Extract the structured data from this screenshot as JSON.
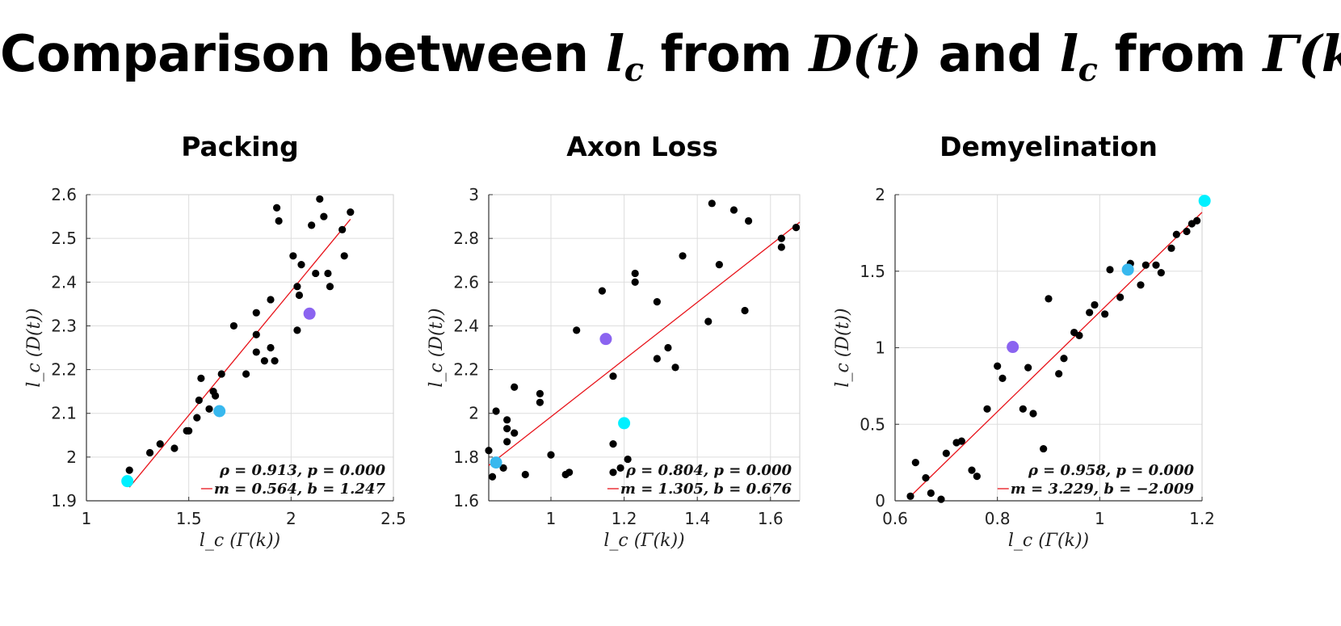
{
  "title": {
    "prefix": "Comparison between ",
    "var1": "l",
    "var1_sub": "c",
    "mid1": " from ",
    "expr1": "D(t)",
    "mid2": " and ",
    "var2": "l",
    "var2_sub": "c",
    "mid3": " from ",
    "expr2": "Γ(k)"
  },
  "colors": {
    "points": "#000000",
    "fit_line": "#e8141b",
    "highlight_cyan": "#00f0ff",
    "highlight_blue": "#38b8ee",
    "highlight_purple": "#8b64f0",
    "grid": "#dddddd"
  },
  "chart_data": [
    {
      "type": "scatter",
      "title": "Packing",
      "xlabel": "l_c (Γ(k))",
      "ylabel": "l_c (D(t))",
      "xlim": [
        1,
        2.5
      ],
      "ylim": [
        1.9,
        2.6
      ],
      "xticks": [
        1,
        1.5,
        2,
        2.5
      ],
      "xtick_labels": [
        "1",
        "1.5",
        "2",
        "2.5"
      ],
      "yticks": [
        1.9,
        2.0,
        2.1,
        2.2,
        2.3,
        2.4,
        2.5,
        2.6
      ],
      "ytick_labels": [
        "1.9",
        "2",
        "2.1",
        "2.2",
        "2.3",
        "2.4",
        "2.5",
        "2.6"
      ],
      "grid": true,
      "points": [
        [
          1.21,
          1.97
        ],
        [
          1.31,
          2.01
        ],
        [
          1.36,
          2.03
        ],
        [
          1.43,
          2.02
        ],
        [
          1.49,
          2.06
        ],
        [
          1.5,
          2.06
        ],
        [
          1.54,
          2.09
        ],
        [
          1.55,
          2.13
        ],
        [
          1.56,
          2.18
        ],
        [
          1.6,
          2.11
        ],
        [
          1.62,
          2.15
        ],
        [
          1.63,
          2.14
        ],
        [
          1.66,
          2.19
        ],
        [
          1.72,
          2.3
        ],
        [
          1.78,
          2.19
        ],
        [
          1.83,
          2.24
        ],
        [
          1.83,
          2.28
        ],
        [
          1.83,
          2.33
        ],
        [
          1.87,
          2.22
        ],
        [
          1.9,
          2.25
        ],
        [
          1.9,
          2.36
        ],
        [
          1.92,
          2.22
        ],
        [
          1.93,
          2.57
        ],
        [
          1.94,
          2.54
        ],
        [
          2.01,
          2.46
        ],
        [
          2.03,
          2.39
        ],
        [
          2.03,
          2.29
        ],
        [
          2.04,
          2.37
        ],
        [
          2.05,
          2.44
        ],
        [
          2.1,
          2.53
        ],
        [
          2.12,
          2.42
        ],
        [
          2.14,
          2.59
        ],
        [
          2.16,
          2.55
        ],
        [
          2.18,
          2.42
        ],
        [
          2.19,
          2.39
        ],
        [
          2.25,
          2.52
        ],
        [
          2.26,
          2.46
        ],
        [
          2.29,
          2.56
        ]
      ],
      "highlights": [
        {
          "x": 1.2,
          "y": 1.945,
          "color": "#00f0ff"
        },
        {
          "x": 1.65,
          "y": 2.105,
          "color": "#38b8ee"
        },
        {
          "x": 2.09,
          "y": 2.328,
          "color": "#8b64f0"
        }
      ],
      "fit": {
        "x_range": [
          1.21,
          2.29
        ]
      },
      "stats_text": "ρ = 0.913, p = 0.000",
      "fit_text": "m = 0.564, b = 1.247"
    },
    {
      "type": "scatter",
      "title": "Axon Loss",
      "xlabel": "l_c (Γ(k))",
      "ylabel": "l_c (D(t))",
      "xlim": [
        0.83,
        1.68
      ],
      "ylim": [
        1.6,
        3.0
      ],
      "xticks": [
        1,
        1.2,
        1.4,
        1.6
      ],
      "xtick_labels": [
        "1",
        "1.2",
        "1.4",
        "1.6"
      ],
      "yticks": [
        1.6,
        1.8,
        2.0,
        2.2,
        2.4,
        2.6,
        2.8,
        3.0
      ],
      "ytick_labels": [
        "1.6",
        "1.8",
        "2",
        "2.2",
        "2.4",
        "2.6",
        "2.8",
        "3"
      ],
      "grid": true,
      "points": [
        [
          0.83,
          1.83
        ],
        [
          0.84,
          1.71
        ],
        [
          0.85,
          2.01
        ],
        [
          0.87,
          1.75
        ],
        [
          0.88,
          1.87
        ],
        [
          0.88,
          1.93
        ],
        [
          0.88,
          1.97
        ],
        [
          0.9,
          1.91
        ],
        [
          0.9,
          2.12
        ],
        [
          0.93,
          1.72
        ],
        [
          0.97,
          2.09
        ],
        [
          0.97,
          2.05
        ],
        [
          1.0,
          1.81
        ],
        [
          1.04,
          1.72
        ],
        [
          1.05,
          1.73
        ],
        [
          1.07,
          2.38
        ],
        [
          1.14,
          2.56
        ],
        [
          1.17,
          1.73
        ],
        [
          1.17,
          1.86
        ],
        [
          1.17,
          2.17
        ],
        [
          1.19,
          1.75
        ],
        [
          1.21,
          1.79
        ],
        [
          1.23,
          2.6
        ],
        [
          1.23,
          2.64
        ],
        [
          1.29,
          2.51
        ],
        [
          1.29,
          2.25
        ],
        [
          1.32,
          2.3
        ],
        [
          1.34,
          2.21
        ],
        [
          1.36,
          2.72
        ],
        [
          1.43,
          2.42
        ],
        [
          1.44,
          2.96
        ],
        [
          1.46,
          2.68
        ],
        [
          1.5,
          2.93
        ],
        [
          1.53,
          2.47
        ],
        [
          1.54,
          2.88
        ],
        [
          1.63,
          2.8
        ],
        [
          1.63,
          2.76
        ],
        [
          1.67,
          2.85
        ]
      ],
      "highlights": [
        {
          "x": 0.85,
          "y": 1.775,
          "color": "#38b8ee"
        },
        {
          "x": 1.15,
          "y": 2.34,
          "color": "#8b64f0"
        },
        {
          "x": 1.2,
          "y": 1.955,
          "color": "#00f0ff"
        }
      ],
      "fit": {
        "x_range": [
          0.83,
          1.68
        ]
      },
      "stats_text": "ρ = 0.804, p = 0.000",
      "fit_text": "m = 1.305, b = 0.676"
    },
    {
      "type": "scatter",
      "title": "Demyelination",
      "xlabel": "l_c (Γ(k))",
      "ylabel": "l_c (D(t))",
      "xlim": [
        0.6,
        1.2
      ],
      "ylim": [
        0,
        2
      ],
      "xticks": [
        0.6,
        0.8,
        1.0,
        1.2
      ],
      "xtick_labels": [
        "0.6",
        "0.8",
        "1",
        "1.2"
      ],
      "yticks": [
        0,
        0.5,
        1.0,
        1.5,
        2.0
      ],
      "ytick_labels": [
        "0",
        "0.5",
        "1",
        "1.5",
        "2"
      ],
      "grid": true,
      "points": [
        [
          0.63,
          0.03
        ],
        [
          0.64,
          0.25
        ],
        [
          0.66,
          0.15
        ],
        [
          0.67,
          0.05
        ],
        [
          0.69,
          0.01
        ],
        [
          0.7,
          0.31
        ],
        [
          0.72,
          0.38
        ],
        [
          0.73,
          0.39
        ],
        [
          0.75,
          0.2
        ],
        [
          0.76,
          0.16
        ],
        [
          0.78,
          0.6
        ],
        [
          0.8,
          0.88
        ],
        [
          0.81,
          0.8
        ],
        [
          0.85,
          0.6
        ],
        [
          0.86,
          0.87
        ],
        [
          0.87,
          0.57
        ],
        [
          0.89,
          0.34
        ],
        [
          0.9,
          1.32
        ],
        [
          0.92,
          0.83
        ],
        [
          0.93,
          0.93
        ],
        [
          0.95,
          1.1
        ],
        [
          0.96,
          1.08
        ],
        [
          0.98,
          1.23
        ],
        [
          0.99,
          1.28
        ],
        [
          1.01,
          1.22
        ],
        [
          1.02,
          1.51
        ],
        [
          1.04,
          1.33
        ],
        [
          1.06,
          1.55
        ],
        [
          1.08,
          1.41
        ],
        [
          1.09,
          1.54
        ],
        [
          1.11,
          1.54
        ],
        [
          1.12,
          1.49
        ],
        [
          1.14,
          1.65
        ],
        [
          1.15,
          1.74
        ],
        [
          1.17,
          1.76
        ],
        [
          1.18,
          1.81
        ],
        [
          1.19,
          1.83
        ]
      ],
      "highlights": [
        {
          "x": 0.83,
          "y": 1.005,
          "color": "#8b64f0"
        },
        {
          "x": 1.055,
          "y": 1.51,
          "color": "#38b8ee"
        },
        {
          "x": 1.205,
          "y": 1.96,
          "color": "#00f0ff"
        }
      ],
      "fit": {
        "x_range": [
          0.63,
          1.2
        ]
      },
      "stats_text": "ρ = 0.958, p = 0.000",
      "fit_text": "m = 3.229, b = −2.009"
    }
  ]
}
